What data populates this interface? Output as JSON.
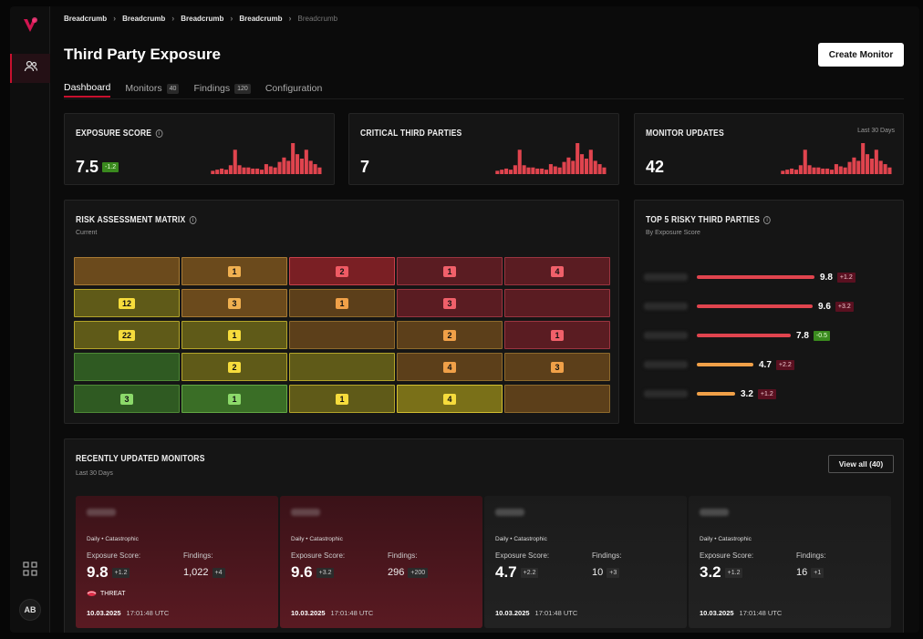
{
  "breadcrumbs": [
    "Breadcrumb",
    "Breadcrumb",
    "Breadcrumb",
    "Breadcrumb",
    "Breadcrumb"
  ],
  "page": {
    "title": "Third Party Exposure",
    "create_button": "Create Monitor"
  },
  "tabs": [
    {
      "label": "Dashboard",
      "count": ""
    },
    {
      "label": "Monitors",
      "count": "40"
    },
    {
      "label": "Findings",
      "count": "120"
    },
    {
      "label": "Configuration",
      "count": ""
    }
  ],
  "user": {
    "initials": "AB"
  },
  "kpis": {
    "exposure": {
      "title": "EXPOSURE SCORE",
      "value": "7.5",
      "delta": "-1.2"
    },
    "critical": {
      "title": "CRITICAL THIRD PARTIES",
      "value": "7"
    },
    "updates": {
      "title": "MONITOR UPDATES",
      "value": "42",
      "period": "Last 30 Days"
    }
  },
  "sparkline": [
    3,
    4,
    5,
    4,
    8,
    22,
    8,
    6,
    6,
    5,
    5,
    4,
    9,
    7,
    6,
    11,
    15,
    12,
    28,
    18,
    14,
    22,
    12,
    9,
    6
  ],
  "matrix": {
    "title": "RISK ASSESSMENT MATRIX",
    "subtitle": "Current",
    "rows": [
      [
        {
          "v": "",
          "c": "o"
        },
        {
          "v": "1",
          "c": "o"
        },
        {
          "v": "2",
          "c": "r"
        },
        {
          "v": "1",
          "c": "dr"
        },
        {
          "v": "4",
          "c": "dr"
        }
      ],
      [
        {
          "v": "12",
          "c": "y"
        },
        {
          "v": "3",
          "c": "o"
        },
        {
          "v": "1",
          "c": "do"
        },
        {
          "v": "3",
          "c": "dr"
        },
        {
          "v": "",
          "c": "dr"
        }
      ],
      [
        {
          "v": "22",
          "c": "y"
        },
        {
          "v": "1",
          "c": "y"
        },
        {
          "v": "",
          "c": "do"
        },
        {
          "v": "2",
          "c": "do"
        },
        {
          "v": "1",
          "c": "dr"
        }
      ],
      [
        {
          "v": "",
          "c": "g"
        },
        {
          "v": "2",
          "c": "y"
        },
        {
          "v": "",
          "c": "y"
        },
        {
          "v": "4",
          "c": "do"
        },
        {
          "v": "3",
          "c": "do"
        }
      ],
      [
        {
          "v": "3",
          "c": "g"
        },
        {
          "v": "1",
          "c": "bg"
        },
        {
          "v": "1",
          "c": "y"
        },
        {
          "v": "4",
          "c": "by"
        },
        {
          "v": "",
          "c": "do"
        }
      ]
    ]
  },
  "risky": {
    "title": "TOP 5 RISKY THIRD PARTIES",
    "subtitle": "By Exposure Score",
    "items": [
      {
        "score": "9.8",
        "delta": "+1.2",
        "fill": 0.98,
        "bar": "#e0444e",
        "badge": "red"
      },
      {
        "score": "9.6",
        "delta": "+3.2",
        "fill": 0.96,
        "bar": "#e0444e",
        "badge": "red"
      },
      {
        "score": "7.8",
        "delta": "-0.5",
        "fill": 0.78,
        "bar": "#e0444e",
        "badge": "green"
      },
      {
        "score": "4.7",
        "delta": "+2.2",
        "fill": 0.47,
        "bar": "#f0a048",
        "badge": "red"
      },
      {
        "score": "3.2",
        "delta": "+1.2",
        "fill": 0.32,
        "bar": "#f0a048",
        "badge": "red"
      }
    ]
  },
  "recent": {
    "title": "RECENTLY UPDATED MONITORS",
    "subtitle": "Last 30 Days",
    "view_all": "View all (40)",
    "score_label": "Exposure Score:",
    "findings_label": "Findings:",
    "monitors": [
      {
        "freq": "Daily • Catastrophic",
        "score": "9.8",
        "score_delta": "+1.2",
        "findings": "1,022",
        "findings_delta": "+4",
        "date": "10.03.2025",
        "time": "17:01:48 UTC",
        "threat": "THREAT",
        "style": "red"
      },
      {
        "freq": "Daily • Catastrophic",
        "score": "9.6",
        "score_delta": "+3.2",
        "findings": "296",
        "findings_delta": "+200",
        "date": "10.03.2025",
        "time": "17:01:48 UTC",
        "threat": "",
        "style": "red"
      },
      {
        "freq": "Daily • Catastrophic",
        "score": "4.7",
        "score_delta": "+2.2",
        "findings": "10",
        "findings_delta": "+3",
        "date": "10.03.2025",
        "time": "17:01:48 UTC",
        "threat": "",
        "style": "gray"
      },
      {
        "freq": "Daily • Catastrophic",
        "score": "3.2",
        "score_delta": "+1.2",
        "findings": "16",
        "findings_delta": "+1",
        "date": "10.03.2025",
        "time": "17:01:48 UTC",
        "threat": "",
        "style": "gray"
      }
    ]
  },
  "colors": {
    "accent": "#c8102e",
    "positive": "#3a8a1e"
  }
}
